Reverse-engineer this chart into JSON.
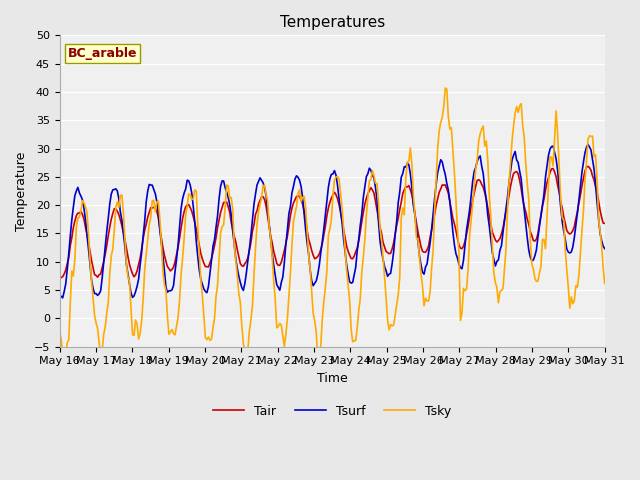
{
  "title": "Temperatures",
  "xlabel": "Time",
  "ylabel": "Temperature",
  "annotation": "BC_arable",
  "legend": [
    "Tair",
    "Tsurf",
    "Tsky"
  ],
  "colors": {
    "Tair": "#cc0000",
    "Tsurf": "#0000cc",
    "Tsky": "#ffaa00"
  },
  "ylim": [
    -5,
    50
  ],
  "yticks": [
    -5,
    0,
    5,
    10,
    15,
    20,
    25,
    30,
    35,
    40,
    45,
    50
  ],
  "background_color": "#e8e8e8",
  "plot_bg_color": "#f0f0f0",
  "title_fontsize": 11,
  "axis_fontsize": 9,
  "tick_fontsize": 8,
  "annotation_fontsize": 9,
  "line_width": 1.2,
  "n_days": 15,
  "start_day": 16,
  "start_month": "May",
  "xtick_every": 1
}
